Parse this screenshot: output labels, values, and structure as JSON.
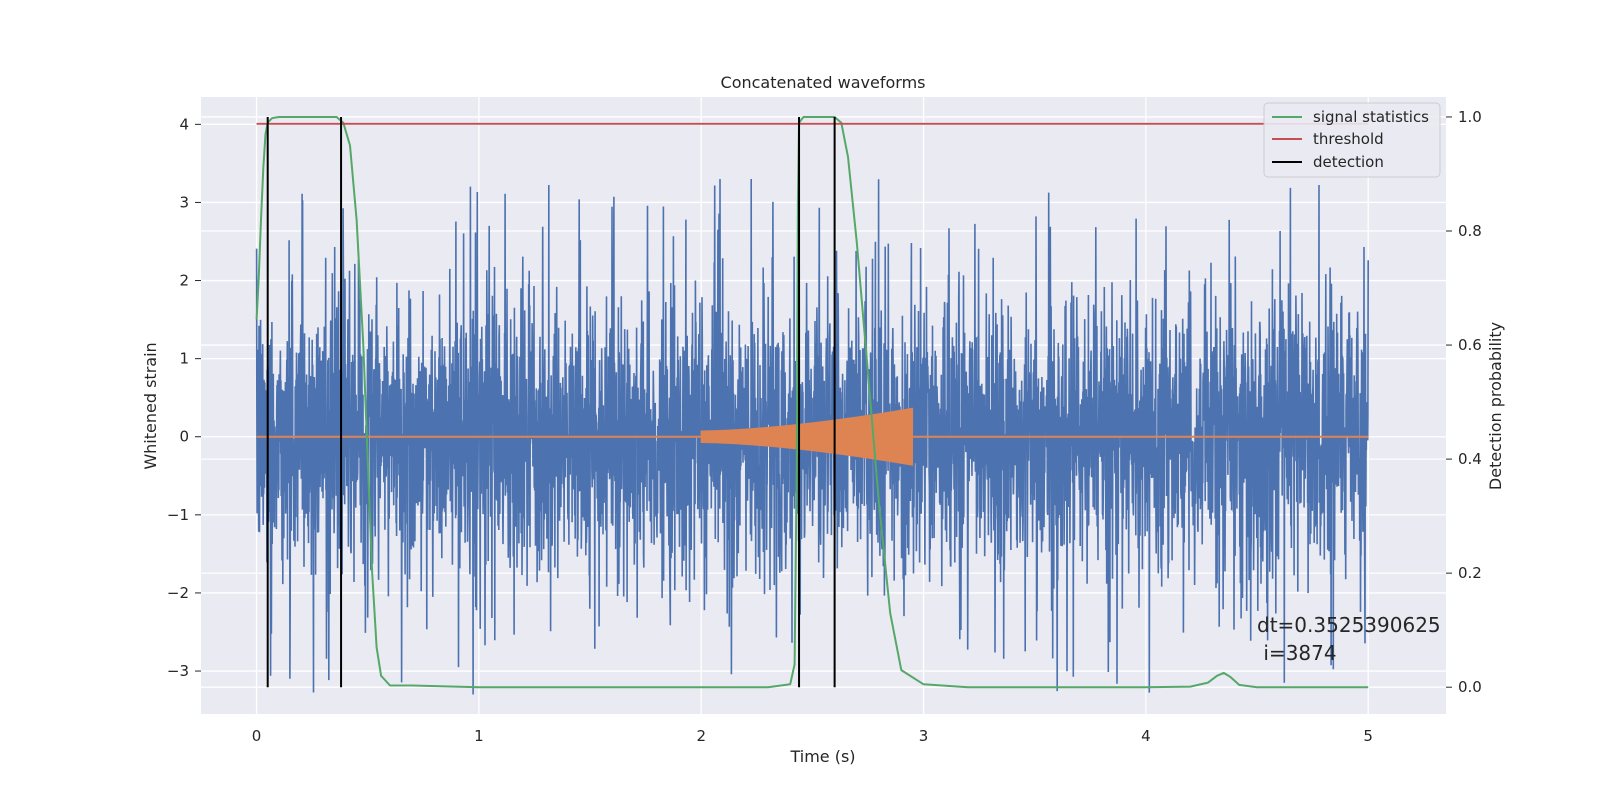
{
  "chart_data": {
    "type": "line",
    "title": "Concatenated waveforms",
    "xlabel": "Time (s)",
    "ylabel": "Whitened strain",
    "y2label": "Detection probability",
    "xlim": [
      -0.25,
      5.35
    ],
    "ylim": [
      -3.55,
      4.35
    ],
    "y2lim": [
      -0.047,
      1.035
    ],
    "xticks": [
      0,
      1,
      2,
      3,
      4,
      5
    ],
    "xtick_labels": [
      "0",
      "1",
      "2",
      "3",
      "4",
      "5"
    ],
    "yticks": [
      -3,
      -2,
      -1,
      0,
      1,
      2,
      3,
      4
    ],
    "ytick_labels": [
      "−3",
      "−2",
      "−1",
      "0",
      "1",
      "2",
      "3",
      "4"
    ],
    "y2ticks": [
      0.0,
      0.2,
      0.4,
      0.6,
      0.8,
      1.0
    ],
    "y2tick_labels": [
      "0.0",
      "0.2",
      "0.4",
      "0.6",
      "0.8",
      "1.0"
    ],
    "grid": true,
    "legend_position": "top-right",
    "colors": {
      "background": "#eaeaf2",
      "grid": "#ffffff",
      "noise": "#4c72b0",
      "injection": "#dd8452",
      "signal": "#55a868",
      "threshold": "#c44e52",
      "detection": "#000000"
    },
    "series": [
      {
        "name": "",
        "role": "whitened-noise",
        "axis": "left",
        "x_range": [
          0,
          5
        ],
        "amplitude_typical": 1.4,
        "amplitude_peak": 3.3
      },
      {
        "name": "",
        "role": "injected-waveform",
        "axis": "left",
        "start": 2.0,
        "end": 2.95,
        "amplitude_start": 0.08,
        "amplitude_end": 0.37
      },
      {
        "name": "signal statistics",
        "axis": "right",
        "x": [
          0,
          0.01,
          0.02,
          0.03,
          0.04,
          0.05,
          0.07,
          0.1,
          0.2,
          0.3,
          0.36,
          0.39,
          0.42,
          0.45,
          0.48,
          0.5,
          0.52,
          0.54,
          0.56,
          0.6,
          0.7,
          1.0,
          2.0,
          2.3,
          2.4,
          2.42,
          2.43,
          2.435,
          2.44,
          2.46,
          2.5,
          2.55,
          2.6,
          2.63,
          2.66,
          2.7,
          2.75,
          2.8,
          2.85,
          2.9,
          3.0,
          3.2,
          4.0,
          4.2,
          4.28,
          4.32,
          4.35,
          4.38,
          4.42,
          4.5,
          5.0
        ],
        "values": [
          0.645,
          0.72,
          0.82,
          0.91,
          0.97,
          0.99,
          0.998,
          1.0,
          1.0,
          1.0,
          1.0,
          0.99,
          0.95,
          0.82,
          0.6,
          0.4,
          0.2,
          0.07,
          0.02,
          0.003,
          0.003,
          0.0,
          0.0,
          0.0,
          0.005,
          0.04,
          0.4,
          0.85,
          0.99,
          1.0,
          1.0,
          1.0,
          1.0,
          0.99,
          0.93,
          0.78,
          0.55,
          0.32,
          0.13,
          0.03,
          0.005,
          0.0,
          0.0,
          0.001,
          0.008,
          0.02,
          0.025,
          0.018,
          0.004,
          0.0,
          0.0
        ]
      },
      {
        "name": "threshold",
        "axis": "right",
        "x": [
          0,
          5
        ],
        "values": [
          0.988,
          0.988
        ]
      },
      {
        "name": "detection",
        "axis": "right",
        "x": [
          0.05,
          0.38,
          2.44,
          2.6
        ],
        "values": [
          1.0,
          1.0,
          1.0,
          1.0
        ]
      }
    ],
    "annotation": {
      "line1": "dt=0.3525390625",
      "line2": " i=3874",
      "x": 4.5,
      "y": -2.5
    }
  }
}
